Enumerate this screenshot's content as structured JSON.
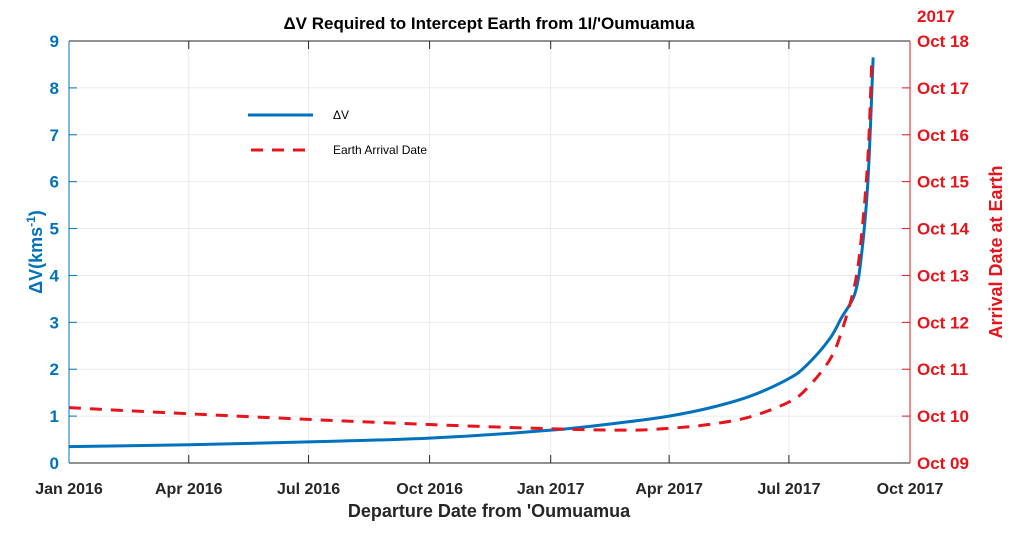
{
  "chart_data": {
    "type": "line",
    "title": "ΔV Required to Intercept Earth from 1I/'Oumuamua",
    "xlabel": "Departure Date from 'Oumuamua",
    "ylabel_left": "ΔV(kms",
    "ylabel_left_sup": "-1",
    "ylabel_left_close": ")",
    "ylabel_right": "Arrival Date at Earth",
    "right_axis_year": "2017",
    "xlim": [
      "2016-01-01",
      "2017-10-01"
    ],
    "ylim_left": [
      0,
      9
    ],
    "ylim_right": [
      "2017-10-09",
      "2017-10-18"
    ],
    "grid": true,
    "legend_position": "upper-left-center",
    "x_ticks": [
      {
        "date": "2016-01-01",
        "label": "Jan 2016"
      },
      {
        "date": "2016-04-01",
        "label": "Apr 2016"
      },
      {
        "date": "2016-07-01",
        "label": "Jul 2016"
      },
      {
        "date": "2016-10-01",
        "label": "Oct 2016"
      },
      {
        "date": "2017-01-01",
        "label": "Jan 2017"
      },
      {
        "date": "2017-04-01",
        "label": "Apr 2017"
      },
      {
        "date": "2017-07-01",
        "label": "Jul 2017"
      },
      {
        "date": "2017-10-01",
        "label": "Oct 2017"
      }
    ],
    "y_ticks_left": [
      "0",
      "1",
      "2",
      "3",
      "4",
      "5",
      "6",
      "7",
      "8",
      "9"
    ],
    "y_ticks_right": [
      {
        "date": "2017-10-09",
        "label": "Oct 09"
      },
      {
        "date": "2017-10-10",
        "label": "Oct 10"
      },
      {
        "date": "2017-10-11",
        "label": "Oct 11"
      },
      {
        "date": "2017-10-12",
        "label": "Oct 12"
      },
      {
        "date": "2017-10-13",
        "label": "Oct 13"
      },
      {
        "date": "2017-10-14",
        "label": "Oct 14"
      },
      {
        "date": "2017-10-15",
        "label": "Oct 15"
      },
      {
        "date": "2017-10-16",
        "label": "Oct 16"
      },
      {
        "date": "2017-10-17",
        "label": "Oct 17"
      },
      {
        "date": "2017-10-18",
        "label": "Oct 18"
      }
    ],
    "series": [
      {
        "name": "ΔV",
        "axis": "left",
        "color": "#0072BD",
        "style": "solid",
        "x": [
          "2016-01-01",
          "2016-04-01",
          "2016-07-01",
          "2016-10-01",
          "2017-01-01",
          "2017-03-01",
          "2017-04-01",
          "2017-05-01",
          "2017-06-01",
          "2017-07-01",
          "2017-07-15",
          "2017-08-01",
          "2017-08-10",
          "2017-08-20",
          "2017-08-25",
          "2017-08-30",
          "2017-09-03"
        ],
        "y": [
          0.35,
          0.39,
          0.45,
          0.53,
          0.7,
          0.88,
          1.0,
          1.17,
          1.42,
          1.8,
          2.1,
          2.65,
          3.1,
          3.6,
          4.4,
          6.0,
          8.65
        ]
      },
      {
        "name": "Earth Arrival Date",
        "axis": "right",
        "color": "#E8141C",
        "style": "dashed",
        "x": [
          "2016-01-01",
          "2016-04-01",
          "2016-07-01",
          "2016-10-01",
          "2017-01-01",
          "2017-03-01",
          "2017-04-01",
          "2017-05-01",
          "2017-06-01",
          "2017-07-01",
          "2017-07-15",
          "2017-08-01",
          "2017-08-10",
          "2017-08-20",
          "2017-08-25",
          "2017-08-30",
          "2017-09-02"
        ],
        "y": [
          "2017-10-10T04:19",
          "2017-10-10T01:12",
          "2017-10-09T22:19",
          "2017-10-09T19:41",
          "2017-10-09T17:31",
          "2017-10-09T16:48",
          "2017-10-09T17:46",
          "2017-10-09T19:41",
          "2017-10-09T23:31",
          "2017-10-10T07:12",
          "2017-10-10T14:24",
          "2017-10-11T04:48",
          "2017-10-11T19:12",
          "2017-10-12T19:12",
          "2017-10-13T19:12",
          "2017-10-15T12:00",
          "2017-10-17T14:24"
        ]
      }
    ]
  }
}
